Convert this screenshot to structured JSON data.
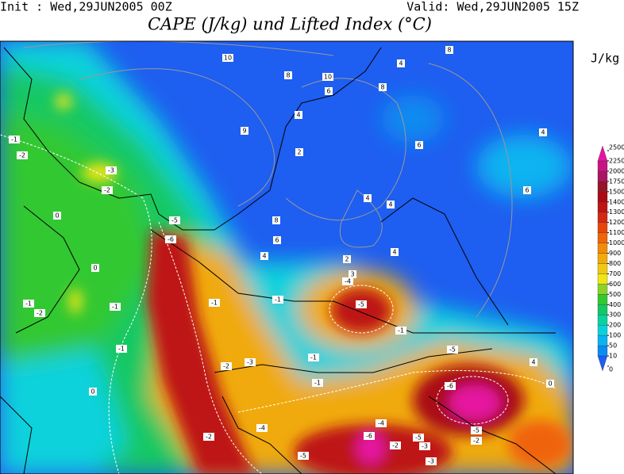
{
  "header": {
    "init": "Init : Wed,29JUN2005 00Z",
    "valid": "Valid: Wed,29JUN2005 15Z",
    "title": "CAPE (J/kg) und Lifted Index (°C)"
  },
  "legend": {
    "unit": "J/kg",
    "levels": [
      0,
      10,
      50,
      100,
      200,
      300,
      400,
      500,
      600,
      700,
      800,
      900,
      1000,
      1100,
      1200,
      1300,
      1400,
      1500,
      1750,
      2000,
      2250,
      2500
    ],
    "colors": [
      "#1e5ef0",
      "#0a8cf0",
      "#0ab4f0",
      "#0ad2dc",
      "#0ad2a0",
      "#14c864",
      "#32c832",
      "#8cd228",
      "#f0e614",
      "#f0c814",
      "#f0aa0a",
      "#f08c0a",
      "#f0640a",
      "#e6460a",
      "#d22814",
      "#be1414",
      "#aa0a14",
      "#961428",
      "#aa1464",
      "#c81482",
      "#e614a0"
    ]
  },
  "contour_labels": [
    "10",
    "8",
    "6",
    "10",
    "9",
    "8",
    "4",
    "2",
    "4",
    "4",
    "8",
    "6",
    "4",
    "4",
    "4",
    "6",
    "8",
    "4",
    "6",
    "-1",
    "-2",
    "-3",
    "-2",
    "0",
    "0",
    "-1",
    "-2",
    "-1",
    "-1",
    "0",
    "-1",
    "-6",
    "-5",
    "-1",
    "-1",
    "-2",
    "-3",
    "-1",
    "-4",
    "-5",
    "-2",
    "-1",
    "-5",
    "-6",
    "-5",
    "-2",
    "-4",
    "-5",
    "-6",
    "-5",
    "-3",
    "-2",
    "-3",
    "2",
    "3",
    "4",
    "0",
    "-4"
  ]
}
